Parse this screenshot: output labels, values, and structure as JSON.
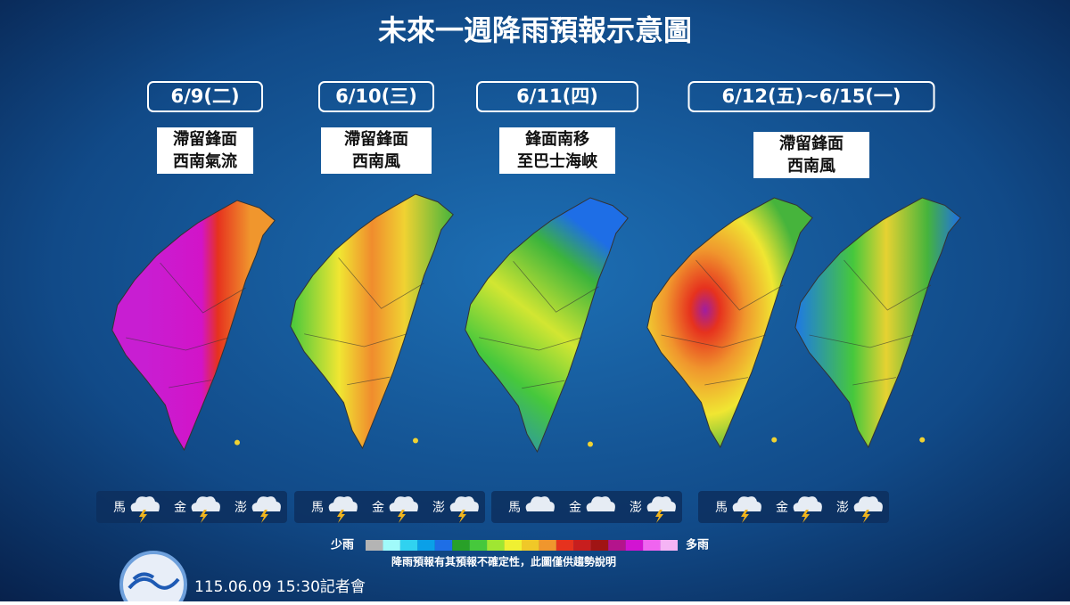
{
  "header": {
    "title": "未來一週降雨預報示意圖"
  },
  "panels": [
    {
      "date": "6/9(二)",
      "desc": [
        "滯留鋒面",
        "西南氣流"
      ],
      "islands": [
        "馬",
        "金",
        "澎"
      ]
    },
    {
      "date": "6/10(三)",
      "desc": [
        "滯留鋒面",
        "西南風"
      ],
      "islands": [
        "馬",
        "金",
        "澎"
      ]
    },
    {
      "date": "6/11(四)",
      "desc": [
        "鋒面南移",
        "至巴士海峽"
      ],
      "islands": [
        "馬",
        "金",
        "澎"
      ]
    },
    {
      "date": "6/12(五)~6/15(一)",
      "desc": [
        "滯留鋒面",
        "西南風"
      ],
      "islands": [
        "馬",
        "金",
        "澎"
      ]
    }
  ],
  "legend": {
    "low": "少雨",
    "high": "多雨",
    "colors": [
      "#b4b4b4",
      "#a0fafa",
      "#30d2f0",
      "#0aa0e8",
      "#1e6ee6",
      "#28a028",
      "#46c83c",
      "#a0e632",
      "#f0f032",
      "#f0c828",
      "#f0962d",
      "#e6321e",
      "#c81e1e",
      "#a01414",
      "#b4148c",
      "#d214d2",
      "#f064f0",
      "#f5b4f5"
    ]
  },
  "note": "降雨預報有其預報不確定性，此圖僅供趨勢說明",
  "footer": "115.06.09 15:30記者會"
}
